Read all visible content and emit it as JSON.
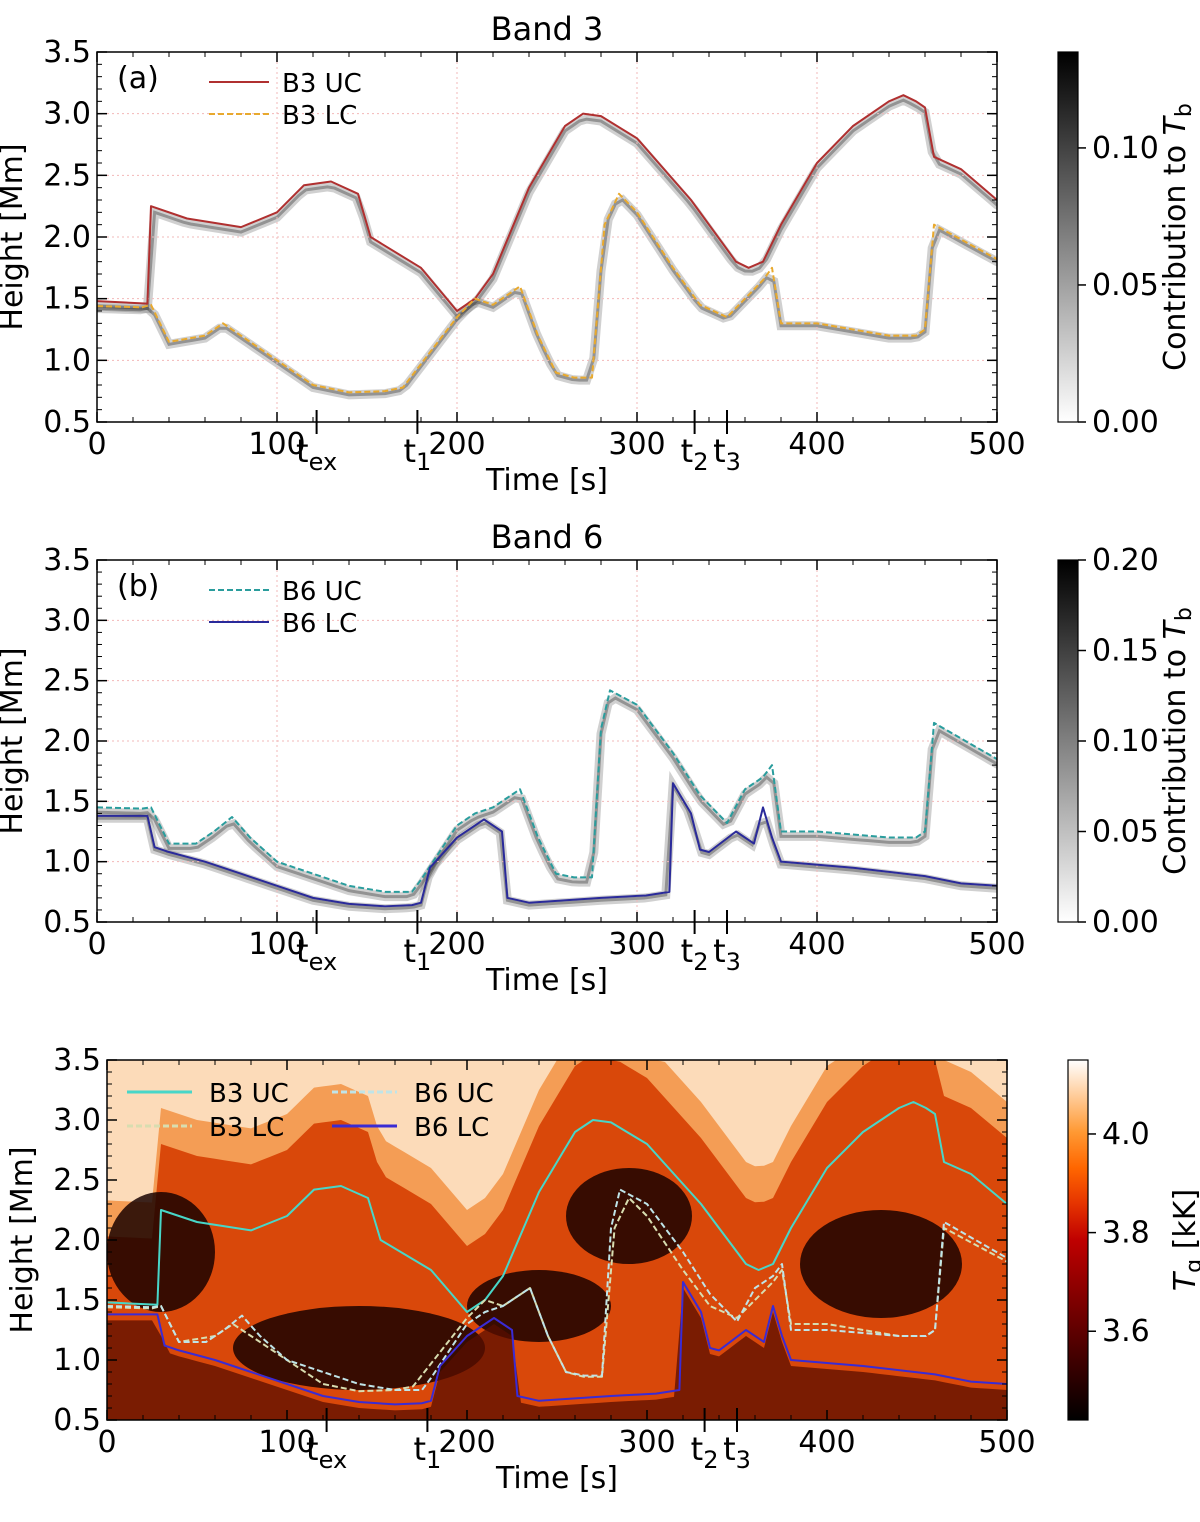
{
  "chart_data": [
    {
      "panel_id": "band3",
      "type": "heatmap",
      "title": "Band 3",
      "panel_label": "(a)",
      "xlabel": "Time [s]",
      "ylabel": "Height [Mm]",
      "xlim": [
        0,
        500
      ],
      "ylim": [
        0.5,
        3.5
      ],
      "xticks": [
        0,
        100,
        200,
        300,
        400,
        500
      ],
      "yticks": [
        0.5,
        1.0,
        1.5,
        2.0,
        2.5,
        3.0,
        3.5
      ],
      "grid": true,
      "legend_position": "top-left",
      "time_markers": [
        {
          "label": "t",
          "sub": "ex",
          "t": 122
        },
        {
          "label": "t",
          "sub": "1",
          "t": 178
        },
        {
          "label": "t",
          "sub": "2",
          "t": 332
        },
        {
          "label": "t",
          "sub": "3",
          "t": 350
        }
      ],
      "colorbar": {
        "label": "Contribution to ",
        "label_math": "T",
        "label_sub": "b",
        "ticks": [
          0.0,
          0.05,
          0.1
        ],
        "tick_labels": [
          "0.00",
          "0.05",
          "0.10"
        ],
        "range": [
          0,
          0.135
        ],
        "colormap": "white-to-black"
      },
      "series": [
        {
          "name": "B3 UC",
          "color": "#b03030",
          "dash": false,
          "t": [
            0,
            28,
            30,
            50,
            80,
            100,
            115,
            130,
            145,
            152,
            180,
            200,
            210,
            220,
            240,
            260,
            270,
            280,
            300,
            330,
            355,
            362,
            370,
            380,
            400,
            420,
            440,
            448,
            455,
            460,
            465,
            480,
            500
          ],
          "h": [
            1.48,
            1.46,
            2.25,
            2.15,
            2.08,
            2.2,
            2.42,
            2.45,
            2.35,
            2.0,
            1.75,
            1.4,
            1.5,
            1.7,
            2.4,
            2.9,
            3.0,
            2.98,
            2.8,
            2.3,
            1.8,
            1.75,
            1.8,
            2.1,
            2.6,
            2.9,
            3.1,
            3.15,
            3.1,
            3.05,
            2.65,
            2.55,
            2.3
          ]
        },
        {
          "name": "B3 LC",
          "color": "#e8a92e",
          "dash": true,
          "t": [
            0,
            25,
            30,
            40,
            60,
            70,
            80,
            100,
            120,
            140,
            160,
            170,
            200,
            210,
            220,
            235,
            245,
            255,
            265,
            275,
            282,
            290,
            300,
            320,
            335,
            350,
            360,
            370,
            375,
            380,
            400,
            440,
            455,
            460,
            465,
            500
          ],
          "h": [
            1.44,
            1.43,
            1.45,
            1.15,
            1.2,
            1.3,
            1.2,
            1.0,
            0.8,
            0.74,
            0.75,
            0.78,
            1.35,
            1.5,
            1.45,
            1.6,
            1.2,
            0.9,
            0.86,
            0.86,
            2.1,
            2.35,
            2.2,
            1.75,
            1.45,
            1.35,
            1.5,
            1.65,
            1.75,
            1.3,
            1.3,
            1.2,
            1.2,
            1.25,
            2.1,
            1.82
          ]
        }
      ]
    },
    {
      "panel_id": "band6",
      "type": "heatmap",
      "title": "Band 6",
      "panel_label": "(b)",
      "xlabel": "Time [s]",
      "ylabel": "Height [Mm]",
      "xlim": [
        0,
        500
      ],
      "ylim": [
        0.5,
        3.5
      ],
      "xticks": [
        0,
        100,
        200,
        300,
        400,
        500
      ],
      "yticks": [
        0.5,
        1.0,
        1.5,
        2.0,
        2.5,
        3.0,
        3.5
      ],
      "grid": true,
      "legend_position": "top-left",
      "time_markers": [
        {
          "label": "t",
          "sub": "ex",
          "t": 122
        },
        {
          "label": "t",
          "sub": "1",
          "t": 178
        },
        {
          "label": "t",
          "sub": "2",
          "t": 332
        },
        {
          "label": "t",
          "sub": "3",
          "t": 350
        }
      ],
      "colorbar": {
        "label": "Contribution to ",
        "label_math": "T",
        "label_sub": "b",
        "ticks": [
          0.0,
          0.05,
          0.1,
          0.15,
          0.2
        ],
        "tick_labels": [
          "0.00",
          "0.05",
          "0.10",
          "0.15",
          "0.20"
        ],
        "range": [
          0,
          0.2
        ],
        "colormap": "white-to-black"
      },
      "series": [
        {
          "name": "B6 UC",
          "color": "#2a9d9d",
          "dash": true,
          "t": [
            0,
            25,
            30,
            40,
            55,
            65,
            75,
            85,
            100,
            120,
            140,
            160,
            175,
            180,
            200,
            210,
            220,
            235,
            245,
            255,
            265,
            275,
            280,
            285,
            300,
            320,
            335,
            350,
            360,
            370,
            375,
            380,
            400,
            440,
            455,
            460,
            465,
            500
          ],
          "h": [
            1.45,
            1.44,
            1.45,
            1.15,
            1.15,
            1.25,
            1.37,
            1.2,
            1.0,
            0.9,
            0.8,
            0.75,
            0.75,
            0.85,
            1.3,
            1.4,
            1.45,
            1.6,
            1.2,
            0.9,
            0.87,
            0.87,
            2.1,
            2.42,
            2.3,
            1.9,
            1.55,
            1.32,
            1.6,
            1.7,
            1.8,
            1.25,
            1.25,
            1.2,
            1.2,
            1.25,
            2.15,
            1.85
          ]
        },
        {
          "name": "B6 LC",
          "color": "#2a2a9a",
          "dash": false,
          "t": [
            0,
            28,
            32,
            40,
            60,
            80,
            100,
            120,
            140,
            160,
            175,
            180,
            185,
            200,
            215,
            225,
            228,
            240,
            280,
            305,
            318,
            320,
            330,
            335,
            340,
            355,
            365,
            370,
            375,
            380,
            420,
            460,
            480,
            500
          ],
          "h": [
            1.38,
            1.38,
            1.12,
            1.08,
            1.0,
            0.9,
            0.8,
            0.7,
            0.65,
            0.63,
            0.64,
            0.66,
            0.95,
            1.2,
            1.35,
            1.25,
            0.7,
            0.66,
            0.7,
            0.72,
            0.75,
            1.65,
            1.4,
            1.1,
            1.08,
            1.25,
            1.15,
            1.45,
            1.2,
            1.0,
            0.95,
            0.88,
            0.82,
            0.8
          ]
        }
      ]
    },
    {
      "panel_id": "temperature",
      "type": "heatmap",
      "title": "",
      "panel_label": "",
      "xlabel": "Time [s]",
      "ylabel": "Height [Mm]",
      "xlim": [
        0,
        500
      ],
      "ylim": [
        0.5,
        3.5
      ],
      "xticks": [
        0,
        100,
        200,
        300,
        400,
        500
      ],
      "yticks": [
        0.5,
        1.0,
        1.5,
        2.0,
        2.5,
        3.0,
        3.5
      ],
      "grid": false,
      "legend_position": "top-left",
      "time_markers": [
        {
          "label": "t",
          "sub": "ex",
          "t": 122
        },
        {
          "label": "t",
          "sub": "1",
          "t": 178
        },
        {
          "label": "t",
          "sub": "2",
          "t": 332
        },
        {
          "label": "t",
          "sub": "3",
          "t": 350
        }
      ],
      "colorbar": {
        "label": " [kK]",
        "label_math": "T",
        "label_sub": "g",
        "ticks": [
          3.6,
          3.8,
          4.0
        ],
        "tick_labels": [
          "3.6",
          "3.8",
          "4.0"
        ],
        "range": [
          3.42,
          4.15
        ],
        "colormap": "gist_heat"
      },
      "series": [
        {
          "name": "B3 UC",
          "color": "#48d6c8",
          "dash": false,
          "ref": "band3.0"
        },
        {
          "name": "B3 LC",
          "color": "#d8ddb0",
          "dash": true,
          "ref": "band3.1"
        },
        {
          "name": "B6 UC",
          "color": "#bfe4e8",
          "dash": true,
          "ref": "band6.0"
        },
        {
          "name": "B6 LC",
          "color": "#3a2bd4",
          "dash": false,
          "ref": "band6.1"
        }
      ]
    }
  ]
}
